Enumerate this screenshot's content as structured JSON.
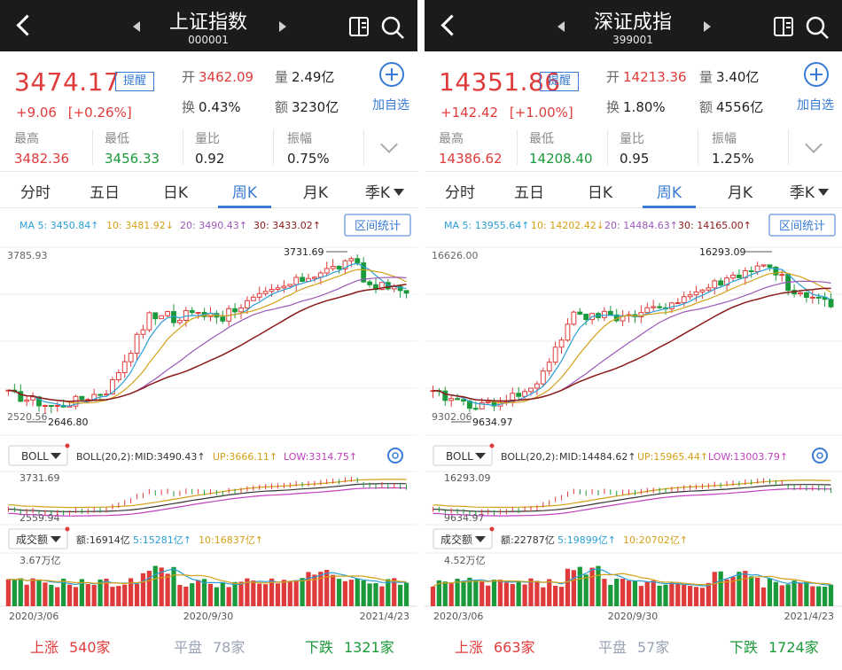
{
  "panels": [
    {
      "id": "left",
      "title": "上证指数",
      "code": "000001",
      "price": "3474.17",
      "remind_label": "提醒",
      "change": "+9.06",
      "change_pct": "[+0.26%]",
      "open_label": "开",
      "open": "3462.09",
      "vol_label": "量",
      "vol": "2.49亿",
      "turnover_label": "换",
      "turnover": "0.43%",
      "amount_label": "额",
      "amount": "3230亿",
      "add_label": "加自选",
      "stats": [
        {
          "label": "最高",
          "value": "3482.36",
          "color": "red"
        },
        {
          "label": "最低",
          "value": "3456.33",
          "color": "green"
        },
        {
          "label": "量比",
          "value": "0.92",
          "color": "dark"
        },
        {
          "label": "振幅",
          "value": "0.75%",
          "color": "dark"
        }
      ],
      "tabs": [
        "分时",
        "五日",
        "日K",
        "周K",
        "月K",
        "季K"
      ],
      "active_tab": 3,
      "ma_labels": [
        "MA 5: 3450.84↑",
        "10: 3481.92↓",
        "20: 3490.43↑",
        "30: 3433.02↑"
      ],
      "range_btn": "区间统计",
      "main_axis_top": "3785.93",
      "main_axis_bottom": "2520.56",
      "high_marker": "3731.69",
      "low_marker": "2646.80",
      "boll_btn": "BOLL",
      "boll_labels": [
        "BOLL(20,2):",
        "MID:3490.43↑",
        "UP:3666.11↑",
        "LOW:3314.75↑"
      ],
      "boll_axis_top": "3731.69",
      "boll_axis_bottom": "2559.94",
      "vol_btn": "成交额",
      "vol_labels": [
        "额:16914亿",
        "5:15281亿↑",
        "10:16837亿↑"
      ],
      "vol_axis_top": "3.67万亿",
      "dates": [
        "2020/3/06",
        "2020/9/30",
        "2021/4/23"
      ],
      "up_label": "上涨",
      "up": "540家",
      "flat_label": "平盘",
      "flat": "78家",
      "down_label": "下跌",
      "down": "1321家",
      "chart_data": {
        "type": "candlestick",
        "ylim": [
          2520.56,
          3785.93
        ],
        "high": 3731.69,
        "low": 2646.8,
        "series_start": 2720,
        "series_end": 3474.17
      }
    },
    {
      "id": "right",
      "title": "深证成指",
      "code": "399001",
      "price": "14351.86",
      "remind_label": "提醒",
      "change": "+142.42",
      "change_pct": "[+1.00%]",
      "open_label": "开",
      "open": "14213.36",
      "vol_label": "量",
      "vol": "3.40亿",
      "turnover_label": "换",
      "turnover": "1.80%",
      "amount_label": "额",
      "amount": "4556亿",
      "add_label": "加自选",
      "stats": [
        {
          "label": "最高",
          "value": "14386.62",
          "color": "red"
        },
        {
          "label": "最低",
          "value": "14208.40",
          "color": "green"
        },
        {
          "label": "量比",
          "value": "0.95",
          "color": "dark"
        },
        {
          "label": "振幅",
          "value": "1.25%",
          "color": "dark"
        }
      ],
      "tabs": [
        "分时",
        "五日",
        "日K",
        "周K",
        "月K",
        "季K"
      ],
      "active_tab": 3,
      "ma_labels": [
        "MA 5: 13955.64↑",
        "10: 14202.42↓",
        "20: 14484.63↑",
        "30: 14165.00↑"
      ],
      "range_btn": "区间统计",
      "main_axis_top": "16626.00",
      "main_axis_bottom": "9302.06",
      "high_marker": "16293.09",
      "low_marker": "9634.97",
      "boll_btn": "BOLL",
      "boll_labels": [
        "BOLL(20,2):",
        "MID:14484.62↑",
        "UP:15965.44↑",
        "LOW:13003.79↑"
      ],
      "boll_axis_top": "16293.09",
      "boll_axis_bottom": "9634.97",
      "vol_btn": "成交额",
      "vol_labels": [
        "额:22787亿",
        "5:19899亿↑",
        "10:20702亿↑"
      ],
      "vol_axis_top": "4.52万亿",
      "dates": [
        "2020/3/06",
        "2020/9/30",
        "2021/4/23"
      ],
      "up_label": "上涨",
      "up": "663家",
      "flat_label": "平盘",
      "flat": "57家",
      "down_label": "下跌",
      "down": "1724家",
      "chart_data": {
        "type": "candlestick",
        "ylim": [
          9302.06,
          16626.0
        ],
        "high": 16293.09,
        "low": 9634.97,
        "series_start": 10100,
        "series_end": 14351.86
      }
    }
  ]
}
